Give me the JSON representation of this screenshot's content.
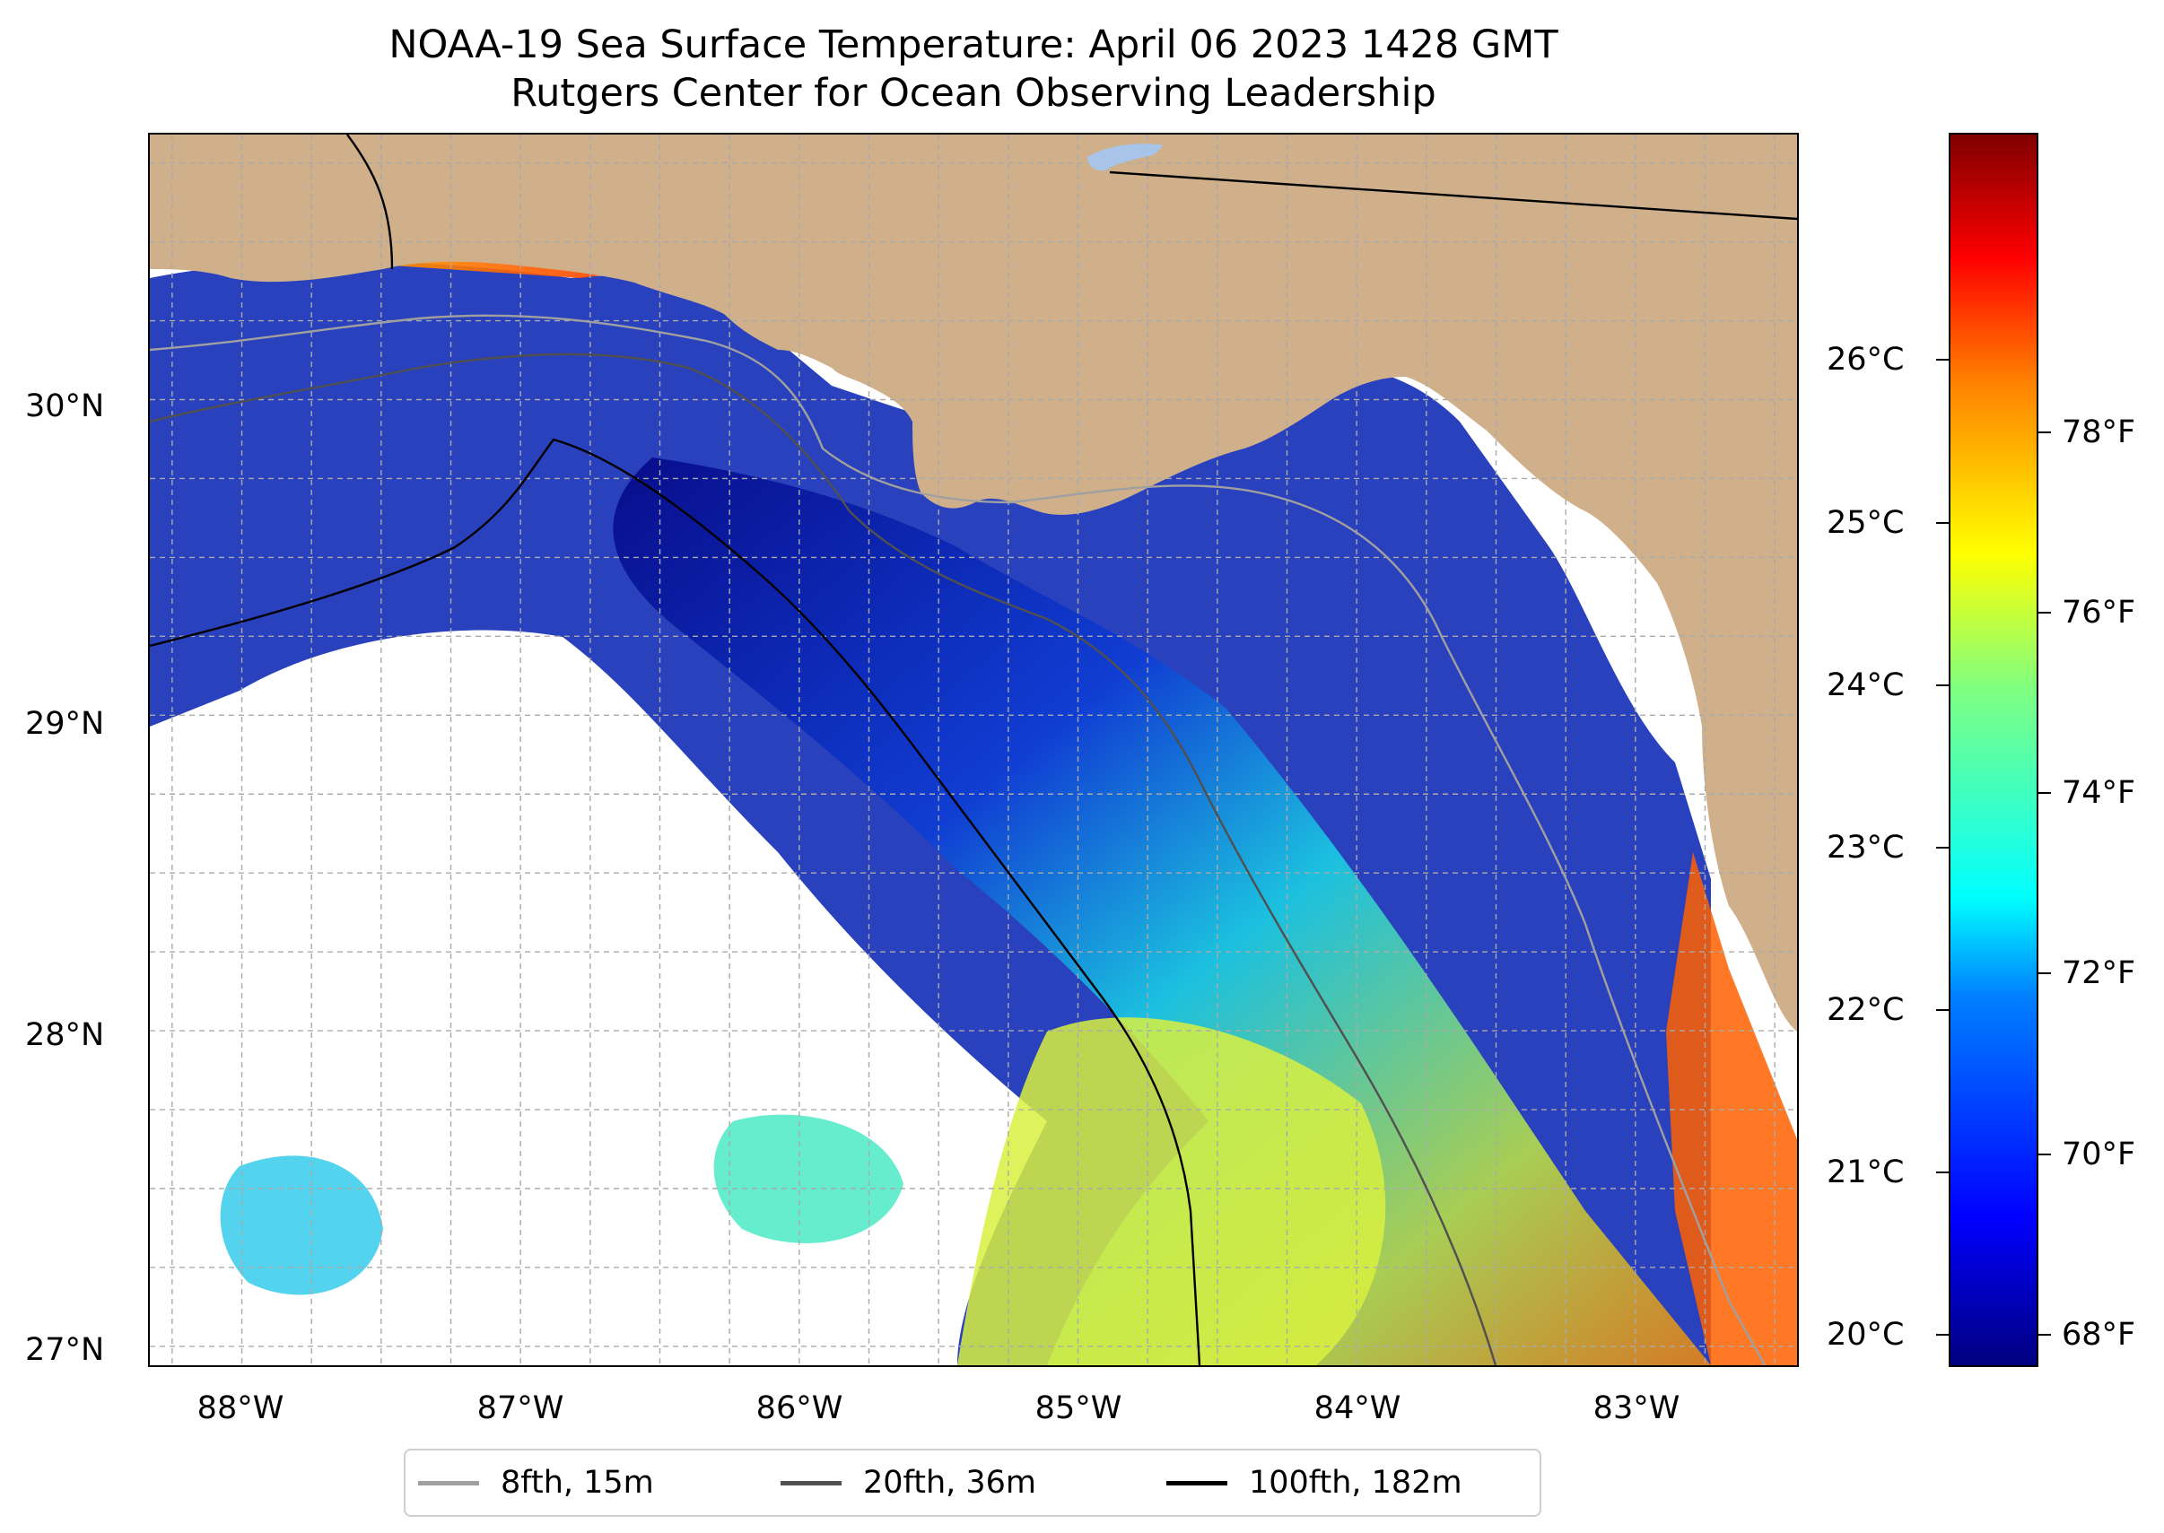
{
  "title": {
    "line1": "NOAA-19 Sea Surface Temperature: April 06 2023 1428 GMT",
    "line2": "Rutgers Center for Ocean Observing Leadership"
  },
  "map": {
    "projection": "lon/lat",
    "extent": {
      "lon": [
        -88.33,
        -82.42
      ],
      "lat": [
        26.94,
        30.84
      ]
    },
    "land_color": "#cfb08a",
    "no_data_color": "#ffffff",
    "gridlines": true,
    "x_ticks": [
      "88°W",
      "87°W",
      "86°W",
      "85°W",
      "84°W",
      "83°W"
    ],
    "y_ticks": [
      "27°N",
      "28°N",
      "29°N",
      "30°N"
    ],
    "x_tick_values": [
      -88,
      -87,
      -86,
      -85,
      -84,
      -83
    ],
    "y_tick_values": [
      27,
      28,
      29,
      30
    ]
  },
  "colorbar": {
    "colormap": "jet",
    "range_c": [
      19.8,
      27.4
    ],
    "celsius_labels": [
      "20°C",
      "21°C",
      "22°C",
      "23°C",
      "24°C",
      "25°C",
      "26°C"
    ],
    "celsius_values": [
      20,
      21,
      22,
      23,
      24,
      25,
      26
    ],
    "fahrenheit_labels": [
      "68°F",
      "70°F",
      "72°F",
      "74°F",
      "76°F",
      "78°F"
    ],
    "fahrenheit_values": [
      68,
      70,
      72,
      74,
      76,
      78
    ]
  },
  "legend": {
    "items": [
      {
        "label": "8fth, 15m",
        "color": "#a0a0a0"
      },
      {
        "label": "20fth, 36m",
        "color": "#505050"
      },
      {
        "label": "100fth, 182m",
        "color": "#000000"
      }
    ]
  }
}
